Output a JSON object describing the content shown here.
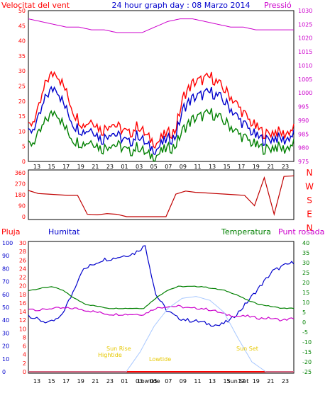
{
  "header": {
    "wind_label": "Velocitat del vent",
    "title": "24 hour graph day : 08 Marzo 2014",
    "pressure_label": "Pressió"
  },
  "colors": {
    "red": "#ff0000",
    "darkred": "#c00000",
    "blue": "#0000cc",
    "green": "#008000",
    "magenta": "#cc00cc",
    "lightblue": "#a8c8ff",
    "yellow": "#e6c800"
  },
  "chart_data": [
    {
      "type": "line",
      "id": "wind_pressure",
      "y_left_ticks": [
        "0",
        "5",
        "10",
        "15",
        "20",
        "25",
        "30",
        "35",
        "40",
        "45",
        "50"
      ],
      "ylim_left": [
        0,
        50
      ],
      "y_right_ticks": [
        "975",
        "980",
        "985",
        "990",
        "995",
        "1000",
        "1005",
        "1010",
        "1015",
        "1020",
        "1025",
        "1030"
      ],
      "ylim_right": [
        975,
        1030
      ],
      "x_ticks": [
        "13",
        "15",
        "17",
        "19",
        "21",
        "23",
        "01",
        "03",
        "05",
        "07",
        "09",
        "11",
        "13",
        "15",
        "17",
        "19",
        "21",
        "23"
      ],
      "series": [
        {
          "role": "wind_gust",
          "color": "red",
          "values": [
            11,
            16,
            27,
            30,
            24,
            16,
            12,
            14,
            10,
            13,
            11,
            9,
            12,
            8,
            6,
            9,
            10,
            22,
            26,
            27,
            28,
            25,
            22,
            18,
            14,
            11,
            9,
            10,
            9,
            11
          ]
        },
        {
          "role": "wind_avg",
          "color": "blue",
          "values": [
            9,
            13,
            22,
            25,
            18,
            12,
            10,
            11,
            7,
            10,
            8,
            6,
            9,
            5,
            4,
            7,
            8,
            18,
            21,
            22,
            23,
            21,
            18,
            14,
            11,
            8,
            7,
            8,
            7,
            9
          ]
        },
        {
          "role": "wind_min",
          "color": "green",
          "values": [
            5,
            8,
            14,
            17,
            11,
            7,
            6,
            7,
            4,
            6,
            5,
            3,
            5,
            2,
            2,
            4,
            5,
            11,
            14,
            15,
            16,
            14,
            12,
            9,
            7,
            5,
            4,
            5,
            4,
            6
          ]
        },
        {
          "role": "pressure",
          "color": "magenta",
          "values": [
            1027,
            1026,
            1025,
            1024,
            1024,
            1023,
            1023,
            1022,
            1022,
            1022,
            1024,
            1026,
            1027,
            1027,
            1026,
            1025,
            1024,
            1024,
            1023,
            1023,
            1023,
            1023
          ]
        }
      ]
    },
    {
      "type": "line",
      "id": "wind_direction",
      "y_left_ticks": [
        "0",
        "90",
        "180",
        "270",
        "360"
      ],
      "ylim_left": [
        0,
        360
      ],
      "y_right_ticks": [
        "N",
        "W",
        "S",
        "E",
        "N"
      ],
      "series": [
        {
          "role": "direction",
          "color": "darkred",
          "values": [
            215,
            190,
            185,
            180,
            175,
            175,
            20,
            15,
            25,
            20,
            0,
            0,
            0,
            0,
            0,
            185,
            210,
            200,
            195,
            190,
            185,
            180,
            175,
            90,
            320,
            20,
            330,
            335
          ]
        }
      ]
    },
    {
      "type": "line",
      "id": "temp_hum",
      "labels": {
        "rain": "Pluja",
        "humidity": "Humitat",
        "temperature": "Temperatura",
        "dewpoint": "Punt rosada"
      },
      "y_rain_ticks": [
        "0",
        "2",
        "4",
        "6",
        "8",
        "10",
        "12",
        "14",
        "16",
        "18",
        "20",
        "22",
        "24",
        "26",
        "28",
        "30"
      ],
      "ylim_rain": [
        0,
        30
      ],
      "y_hum_ticks": [
        "0",
        "10",
        "20",
        "30",
        "40",
        "50",
        "60",
        "70",
        "80",
        "90",
        "100"
      ],
      "ylim_hum": [
        0,
        100
      ],
      "y_temp_ticks": [
        "-25",
        "-20",
        "-15",
        "-10",
        "-5",
        "0",
        "5",
        "10",
        "15",
        "20",
        "25",
        "30",
        "35",
        "40"
      ],
      "ylim_temp": [
        -25,
        40
      ],
      "x_ticks": [
        "13",
        "15",
        "17",
        "19",
        "21",
        "23",
        "01",
        "03",
        "05",
        "07",
        "09",
        "11",
        "13",
        "15",
        "17",
        "19",
        "21",
        "23"
      ],
      "x_overlay_ticks": [
        "Lowtide",
        "Sun Set"
      ],
      "annotations": [
        "Sun Rise",
        "Hightide",
        "Lowtide",
        "Sun Set"
      ],
      "series": [
        {
          "role": "humidity",
          "color": "blue",
          "values": [
            44,
            40,
            38,
            42,
            58,
            78,
            83,
            87,
            88,
            90,
            92,
            98,
            60,
            48,
            42,
            40,
            39,
            37,
            36,
            40,
            48,
            58,
            68,
            78,
            82,
            85
          ]
        },
        {
          "role": "temperature",
          "color": "green",
          "values": [
            16,
            17,
            18,
            16,
            12,
            9,
            8,
            7,
            7,
            7,
            7,
            12,
            16,
            18,
            18,
            18,
            17,
            16,
            14,
            11,
            9,
            8,
            7,
            7
          ]
        },
        {
          "role": "dewpoint",
          "color": "magenta",
          "values": [
            7,
            6,
            7,
            7,
            7,
            6,
            5,
            4,
            4,
            4,
            4,
            7,
            8,
            8,
            7,
            7,
            6,
            4,
            3,
            3,
            2,
            2,
            1,
            2
          ]
        },
        {
          "role": "solar",
          "color": "lightblue",
          "values": [
            -25,
            -25,
            -25,
            -25,
            -25,
            -25,
            -25,
            -25,
            -15,
            -2,
            7,
            12,
            13,
            11,
            5,
            -8,
            -20,
            -25,
            -25,
            -25
          ]
        }
      ]
    }
  ]
}
